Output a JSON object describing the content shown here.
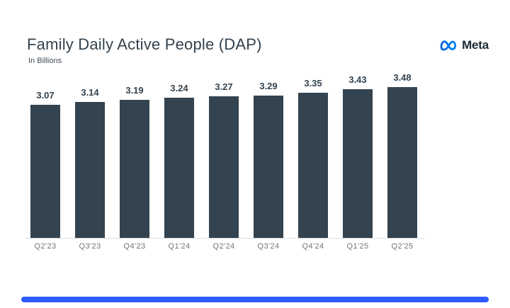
{
  "header": {
    "title": "Family Daily Active People (DAP)",
    "subtitle": "In Billions"
  },
  "logo": {
    "text": "Meta",
    "icon": "meta-infinity-icon",
    "gradient_start": "#0064E0",
    "gradient_end": "#0082FB",
    "text_color": "#1C2B33"
  },
  "chart_data": {
    "type": "bar",
    "categories": [
      "Q2'23",
      "Q3'23",
      "Q4'23",
      "Q1'24",
      "Q2'24",
      "Q3'24",
      "Q4'24",
      "Q1'25",
      "Q2'25"
    ],
    "values": [
      3.07,
      3.14,
      3.19,
      3.24,
      3.27,
      3.29,
      3.35,
      3.43,
      3.48
    ],
    "data_labels": [
      "3.07",
      "3.14",
      "3.19",
      "3.24",
      "3.27",
      "3.29",
      "3.35",
      "3.43",
      "3.48"
    ],
    "title": "Family Daily Active People (DAP)",
    "xlabel": "",
    "ylabel": "In Billions",
    "ylim": [
      0,
      3.48
    ],
    "grid": false,
    "legend": false,
    "bar_color": "#33434F",
    "value_label_color": "#33424E",
    "tick_label_color": "#6E767D",
    "axis_line_color": "#D9DDE0"
  },
  "footer": {
    "progress_color": "#2E5BFF"
  }
}
